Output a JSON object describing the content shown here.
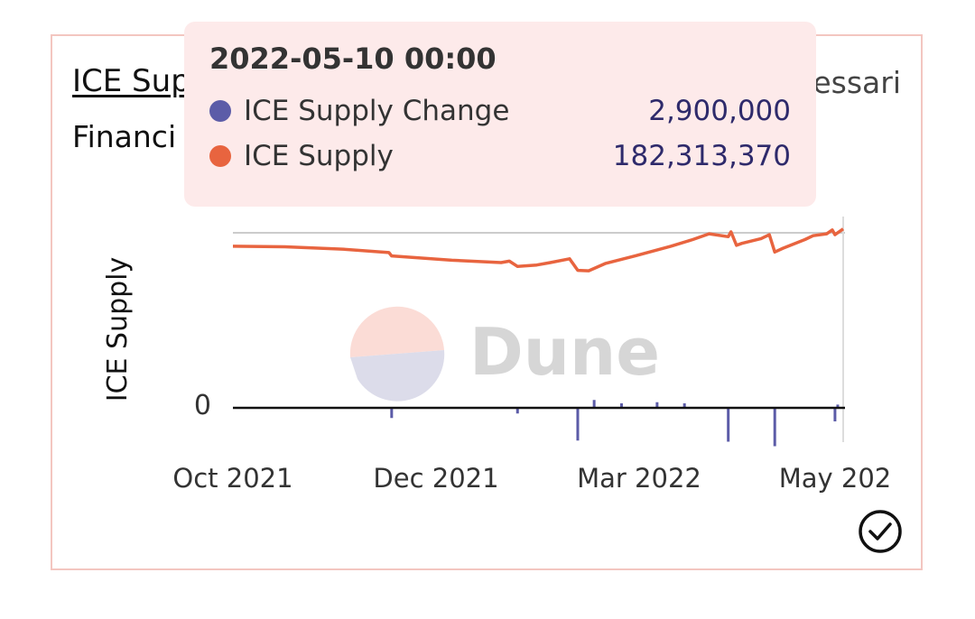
{
  "card": {
    "title": "ICE Sup",
    "subtitle": "Financi",
    "author": "essari"
  },
  "tooltip": {
    "date": "2022-05-10 00:00",
    "rows": [
      {
        "name": "ICE Supply Change",
        "value": "2,900,000",
        "color": "#5c5ca8"
      },
      {
        "name": "ICE Supply",
        "value": "182,313,370",
        "color": "#e8643f"
      }
    ]
  },
  "watermark": {
    "text": "Dune",
    "colors": {
      "top": "#fbdcd6",
      "bottom": "#dcdcea",
      "text": "#d6d6d6"
    }
  },
  "icons": {
    "verified": "check-circle-icon"
  },
  "chart_data": {
    "type": "line",
    "title": "",
    "xlabel": "",
    "ylabel": "ICE Supply",
    "y_ticks": [
      "0"
    ],
    "x_ticks": [
      "Oct 2021",
      "Dec 2021",
      "Mar 2022",
      "May 202"
    ],
    "x_range": [
      "2021-10-01",
      "2022-05-12"
    ],
    "colors": {
      "supply": "#e8643f",
      "change": "#5c5ca8",
      "axis": "#111111",
      "grid": "#cccccc"
    },
    "series": [
      {
        "name": "ICE Supply",
        "type": "line",
        "points": [
          [
            "2021-10-01",
            168000000
          ],
          [
            "2021-10-20",
            167500000
          ],
          [
            "2021-11-10",
            165000000
          ],
          [
            "2021-11-27",
            161500000
          ],
          [
            "2021-11-28",
            158000000
          ],
          [
            "2021-12-20",
            153500000
          ],
          [
            "2022-01-07",
            151000000
          ],
          [
            "2022-01-10",
            152500000
          ],
          [
            "2022-01-13",
            147000000
          ],
          [
            "2022-01-20",
            148500000
          ],
          [
            "2022-01-25",
            151000000
          ],
          [
            "2022-02-01",
            155000000
          ],
          [
            "2022-02-04",
            143000000
          ],
          [
            "2022-02-08",
            142500000
          ],
          [
            "2022-02-14",
            150000000
          ],
          [
            "2022-02-25",
            158000000
          ],
          [
            "2022-03-10",
            168000000
          ],
          [
            "2022-03-18",
            175000000
          ],
          [
            "2022-03-24",
            181000000
          ],
          [
            "2022-03-31",
            178000000
          ],
          [
            "2022-04-01",
            183000000
          ],
          [
            "2022-04-03",
            169000000
          ],
          [
            "2022-04-05",
            171000000
          ],
          [
            "2022-04-12",
            176000000
          ],
          [
            "2022-04-15",
            180000000
          ],
          [
            "2022-04-17",
            162000000
          ],
          [
            "2022-04-20",
            166000000
          ],
          [
            "2022-04-28",
            175000000
          ],
          [
            "2022-05-01",
            179000000
          ],
          [
            "2022-05-06",
            181000000
          ],
          [
            "2022-05-08",
            185000000
          ],
          [
            "2022-05-09",
            180000000
          ],
          [
            "2022-05-12",
            186000000
          ]
        ]
      },
      {
        "name": "ICE Supply Change",
        "type": "bar",
        "points": [
          [
            "2021-11-28",
            -9000000
          ],
          [
            "2022-01-13",
            -5000000
          ],
          [
            "2022-02-04",
            -29000000
          ],
          [
            "2022-02-10",
            7000000
          ],
          [
            "2022-03-31",
            -30000000
          ],
          [
            "2022-04-17",
            -34000000
          ],
          [
            "2022-02-20",
            4000000
          ],
          [
            "2022-03-05",
            5000000
          ],
          [
            "2022-03-15",
            4000000
          ],
          [
            "2022-05-09",
            -12000000
          ],
          [
            "2022-05-10",
            2900000
          ]
        ]
      }
    ]
  }
}
